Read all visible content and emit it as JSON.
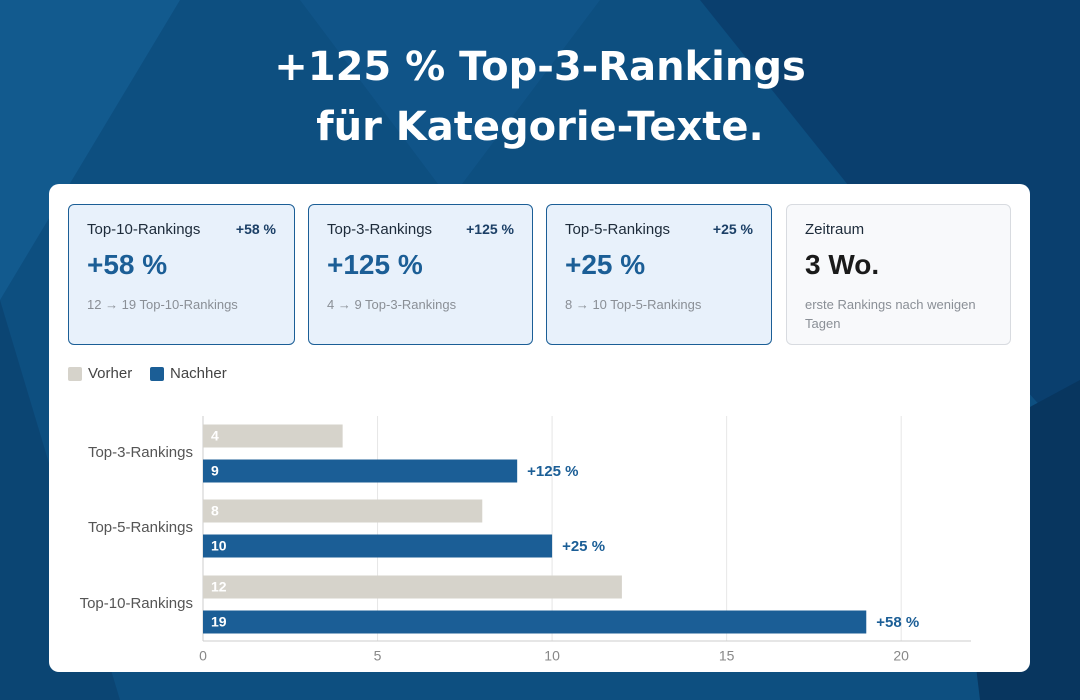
{
  "header": {
    "title_lines": [
      "+125 % Top-3-Rankings",
      "für Kategorie-Texte."
    ]
  },
  "cards": [
    {
      "label": "Top-10-Rankings",
      "badge": "+58 %",
      "value": "+58 %",
      "detail": "12 → 19 Top-10-Rankings"
    },
    {
      "label": "Top-3-Rankings",
      "badge": "+125 %",
      "value": "+125 %",
      "detail": "4 → 9 Top-3-Rankings"
    },
    {
      "label": "Top-5-Rankings",
      "badge": "+25 %",
      "value": "+25 %",
      "detail": "8 → 10 Top-5-Rankings"
    },
    {
      "label": "Zeitraum",
      "value": "3 Wo.",
      "detail": "erste Rankings nach wenigen Tagen"
    }
  ],
  "chart_data": {
    "type": "hbar",
    "categories": [
      "Top-3-Rankings",
      "Top-5-Rankings",
      "Top-10-Rankings"
    ],
    "series": [
      {
        "name": "Vorher",
        "color": "#d6d3cb",
        "values": [
          4,
          8,
          12
        ]
      },
      {
        "name": "Nachher",
        "color": "#1b5e96",
        "values": [
          9,
          10,
          19
        ]
      }
    ],
    "annotations": [
      "+125 %",
      "+25 %",
      "+58 %"
    ],
    "xlim": [
      0,
      22
    ],
    "xticks": [
      0,
      5,
      10,
      15,
      20
    ],
    "grid": true
  }
}
